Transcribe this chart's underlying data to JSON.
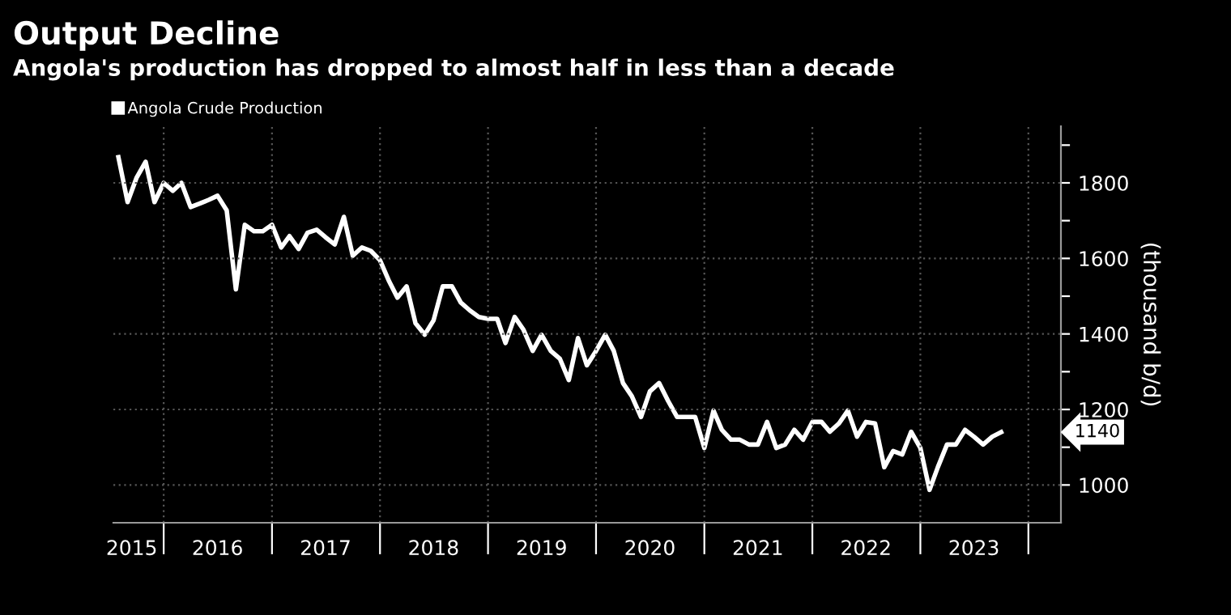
{
  "chart_data": {
    "type": "line",
    "title": "Output Decline",
    "subtitle": "Angola's production has dropped to almost half in less than a decade",
    "ylabel": "(thousand b/d)",
    "x": [
      "2015-08",
      "2015-09",
      "2015-10",
      "2015-11",
      "2015-12",
      "2016-01",
      "2016-02",
      "2016-03",
      "2016-04",
      "2016-05",
      "2016-06",
      "2016-07",
      "2016-08",
      "2016-09",
      "2016-10",
      "2016-11",
      "2016-12",
      "2017-01",
      "2017-02",
      "2017-03",
      "2017-04",
      "2017-05",
      "2017-06",
      "2017-07",
      "2017-08",
      "2017-09",
      "2017-10",
      "2017-11",
      "2017-12",
      "2018-01",
      "2018-02",
      "2018-03",
      "2018-04",
      "2018-05",
      "2018-06",
      "2018-07",
      "2018-08",
      "2018-09",
      "2018-10",
      "2018-11",
      "2018-12",
      "2019-01",
      "2019-02",
      "2019-03",
      "2019-04",
      "2019-05",
      "2019-06",
      "2019-07",
      "2019-08",
      "2019-09",
      "2019-10",
      "2019-11",
      "2019-12",
      "2020-01",
      "2020-02",
      "2020-03",
      "2020-04",
      "2020-05",
      "2020-06",
      "2020-07",
      "2020-08",
      "2020-09",
      "2020-10",
      "2020-11",
      "2020-12",
      "2021-01",
      "2021-02",
      "2021-03",
      "2021-04",
      "2021-05",
      "2021-06",
      "2021-07",
      "2021-08",
      "2021-09",
      "2021-10",
      "2021-11",
      "2021-12",
      "2022-01",
      "2022-02",
      "2022-03",
      "2022-04",
      "2022-05",
      "2022-06",
      "2022-07",
      "2022-08",
      "2022-09",
      "2022-10",
      "2022-11",
      "2022-12",
      "2023-01",
      "2023-02",
      "2023-03",
      "2023-04",
      "2023-05",
      "2023-06",
      "2023-07",
      "2023-08",
      "2023-09",
      "2023-10"
    ],
    "series": [
      {
        "name": "Angola Crude Production",
        "color": "#ffffff",
        "values": [
          1868,
          1749,
          1813,
          1856,
          1749,
          1800,
          1779,
          1800,
          1736,
          1745,
          1755,
          1766,
          1727,
          1518,
          1689,
          1672,
          1672,
          1689,
          1629,
          1659,
          1625,
          1668,
          1676,
          1656,
          1637,
          1710,
          1607,
          1629,
          1620,
          1595,
          1539,
          1496,
          1526,
          1428,
          1398,
          1436,
          1526,
          1526,
          1483,
          1462,
          1445,
          1440,
          1440,
          1376,
          1445,
          1411,
          1355,
          1398,
          1355,
          1334,
          1278,
          1389,
          1317,
          1355,
          1398,
          1355,
          1270,
          1235,
          1180,
          1248,
          1270,
          1222,
          1180,
          1180,
          1180,
          1098,
          1197,
          1146,
          1120,
          1120,
          1107,
          1107,
          1167,
          1098,
          1107,
          1146,
          1120,
          1167,
          1167,
          1141,
          1163,
          1197,
          1128,
          1167,
          1163,
          1047,
          1090,
          1081,
          1141,
          1098,
          987,
          1047,
          1107,
          1107,
          1146,
          1128,
          1107,
          1128,
          1140
        ]
      }
    ],
    "xlim": [
      "2015-07-15",
      "2024-04-20"
    ],
    "xticks": [
      {
        "value": "2015-09-15",
        "label": "2015"
      },
      {
        "value": "2016-01-01",
        "label": null
      },
      {
        "value": "2016-07-01",
        "label": "2016"
      },
      {
        "value": "2017-01-01",
        "label": null
      },
      {
        "value": "2017-07-01",
        "label": "2017"
      },
      {
        "value": "2018-01-01",
        "label": null
      },
      {
        "value": "2018-07-01",
        "label": "2018"
      },
      {
        "value": "2019-01-01",
        "label": null
      },
      {
        "value": "2019-07-01",
        "label": "2019"
      },
      {
        "value": "2020-01-01",
        "label": null
      },
      {
        "value": "2020-07-01",
        "label": "2020"
      },
      {
        "value": "2021-01-01",
        "label": null
      },
      {
        "value": "2021-07-01",
        "label": "2021"
      },
      {
        "value": "2022-01-01",
        "label": null
      },
      {
        "value": "2022-07-01",
        "label": "2022"
      },
      {
        "value": "2023-01-01",
        "label": null
      },
      {
        "value": "2023-07-01",
        "label": "2023"
      },
      {
        "value": "2024-01-01",
        "label": null
      }
    ],
    "ylim": [
      900,
      1950
    ],
    "yticks": [
      1000,
      {
        "value": 1100,
        "label": null
      },
      1200,
      {
        "value": 1300,
        "label": null
      },
      1400,
      {
        "value": 1500,
        "label": null
      },
      1600,
      {
        "value": 1700,
        "label": null
      },
      1800,
      {
        "value": 1900,
        "label": null
      }
    ],
    "grid": true,
    "legend": "top left",
    "marker": "none",
    "line_style": "solid",
    "annotations": [
      "1140"
    ]
  }
}
